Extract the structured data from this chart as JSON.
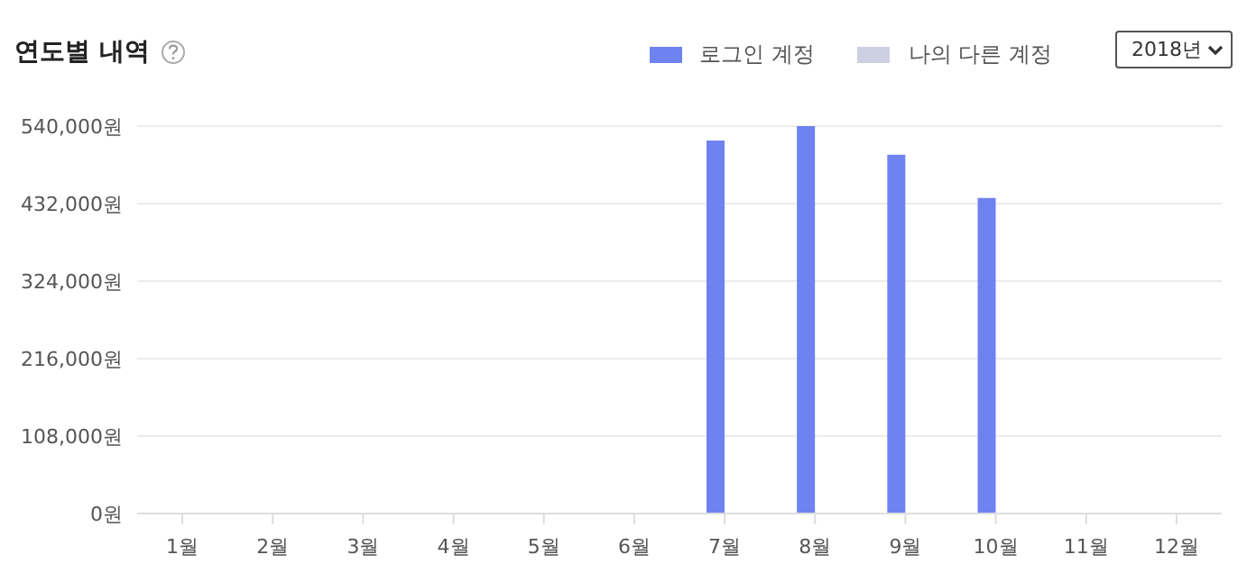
{
  "chart_data": {
    "type": "bar",
    "title": "연도별 내역",
    "categories": [
      "1월",
      "2월",
      "3월",
      "4월",
      "5월",
      "6월",
      "7월",
      "8월",
      "9월",
      "10월",
      "11월",
      "12월"
    ],
    "series": [
      {
        "name": "로그인 계정",
        "color": "#6e82f0",
        "values": [
          0,
          0,
          0,
          0,
          0,
          0,
          520000,
          540000,
          500000,
          440000,
          0,
          0
        ]
      },
      {
        "name": "나의 다른 계정",
        "color": "#cdd0e0",
        "values": [
          0,
          0,
          0,
          0,
          0,
          0,
          0,
          0,
          0,
          0,
          0,
          0
        ]
      }
    ],
    "ylim": [
      0,
      540000
    ],
    "yticks": [
      {
        "value": 0,
        "label": "0원"
      },
      {
        "value": 108000,
        "label": "108,000원"
      },
      {
        "value": 216000,
        "label": "216,000원"
      },
      {
        "value": 324000,
        "label": "324,000원"
      },
      {
        "value": 432000,
        "label": "432,000원"
      },
      {
        "value": 540000,
        "label": "540,000원"
      }
    ],
    "grid": "y",
    "legend": "top right",
    "annotations": [
      "2018년"
    ]
  }
}
